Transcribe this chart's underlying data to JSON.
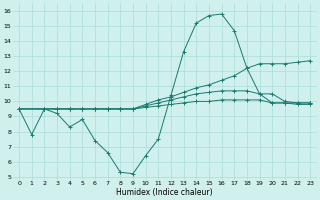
{
  "xlabel": "Humidex (Indice chaleur)",
  "bg_color": "#cff0ec",
  "grid_color": "#aaddd8",
  "line_color": "#1a7a6e",
  "xlim": [
    -0.5,
    23.5
  ],
  "ylim": [
    4.8,
    16.5
  ],
  "xticks": [
    0,
    1,
    2,
    3,
    4,
    5,
    6,
    7,
    8,
    9,
    10,
    11,
    12,
    13,
    14,
    15,
    16,
    17,
    18,
    19,
    20,
    21,
    22,
    23
  ],
  "yticks": [
    5,
    6,
    7,
    8,
    9,
    10,
    11,
    12,
    13,
    14,
    15,
    16
  ],
  "line1_x": [
    0,
    1,
    2,
    3,
    4,
    5,
    6,
    7,
    8,
    9,
    10,
    11,
    12,
    13,
    14,
    15,
    16,
    17,
    18,
    19,
    20,
    21,
    22,
    23
  ],
  "line1_y": [
    9.5,
    7.8,
    9.5,
    9.2,
    8.3,
    8.8,
    7.4,
    6.6,
    5.3,
    5.2,
    6.4,
    7.5,
    10.4,
    13.3,
    15.2,
    15.7,
    15.8,
    14.7,
    12.2,
    10.5,
    9.9,
    9.9,
    9.8,
    9.8
  ],
  "line2_x": [
    0,
    2,
    3,
    4,
    5,
    6,
    7,
    8,
    9,
    10,
    11,
    12,
    13,
    14,
    15,
    16,
    17,
    18,
    19,
    20,
    21,
    22,
    23
  ],
  "line2_y": [
    9.5,
    9.5,
    9.5,
    9.5,
    9.5,
    9.5,
    9.5,
    9.5,
    9.5,
    9.8,
    10.1,
    10.3,
    10.6,
    10.9,
    11.1,
    11.4,
    11.7,
    12.2,
    12.5,
    12.5,
    12.5,
    12.6,
    12.7
  ],
  "line3_x": [
    0,
    2,
    3,
    4,
    5,
    6,
    7,
    8,
    9,
    10,
    11,
    12,
    13,
    14,
    15,
    16,
    17,
    18,
    19,
    20,
    21,
    22,
    23
  ],
  "line3_y": [
    9.5,
    9.5,
    9.5,
    9.5,
    9.5,
    9.5,
    9.5,
    9.5,
    9.5,
    9.7,
    9.9,
    10.1,
    10.3,
    10.5,
    10.6,
    10.7,
    10.7,
    10.7,
    10.5,
    10.5,
    10.0,
    9.9,
    9.9
  ],
  "line4_x": [
    0,
    2,
    3,
    4,
    5,
    6,
    7,
    8,
    9,
    10,
    11,
    12,
    13,
    14,
    15,
    16,
    17,
    18,
    19,
    20,
    21,
    22,
    23
  ],
  "line4_y": [
    9.5,
    9.5,
    9.5,
    9.5,
    9.5,
    9.5,
    9.5,
    9.5,
    9.5,
    9.6,
    9.7,
    9.8,
    9.9,
    10.0,
    10.0,
    10.1,
    10.1,
    10.1,
    10.1,
    9.9,
    9.9,
    9.9,
    9.9
  ]
}
